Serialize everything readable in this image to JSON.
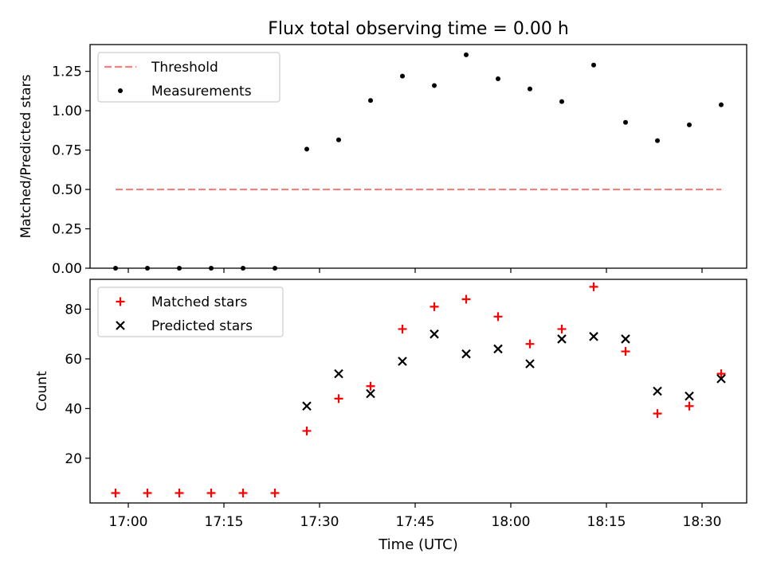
{
  "title": "Flux total observing time = 0.00 h",
  "xlabel": "Time (UTC)",
  "x_tick_labels": [
    "17:00",
    "17:15",
    "17:30",
    "17:45",
    "18:00",
    "18:15",
    "18:30"
  ],
  "x_tick_times": [
    "17:00",
    "17:15",
    "17:30",
    "17:45",
    "18:00",
    "18:15",
    "18:30"
  ],
  "x_range": [
    "16:54",
    "18:37"
  ],
  "chart_data": [
    {
      "type": "scatter",
      "ylabel": "Matched/Predicted stars",
      "ylim": [
        0,
        1.42
      ],
      "y_ticks": [
        0.0,
        0.25,
        0.5,
        0.75,
        1.0,
        1.25
      ],
      "y_tick_labels": [
        "0.00",
        "0.25",
        "0.50",
        "0.75",
        "1.00",
        "1.25"
      ],
      "legend_position": "top-left",
      "x": [
        "16:58",
        "17:03",
        "17:08",
        "17:13",
        "17:18",
        "17:23",
        "17:28",
        "17:33",
        "17:38",
        "17:43",
        "17:48",
        "17:53",
        "17:58",
        "18:03",
        "18:08",
        "18:13",
        "18:18",
        "18:23",
        "18:28",
        "18:33"
      ],
      "series": [
        {
          "name": "Threshold",
          "kind": "line",
          "color": "#ff7f7f",
          "style": "dashed",
          "x": [
            "16:58",
            "18:33"
          ],
          "values": [
            0.5,
            0.5
          ]
        },
        {
          "name": "Measurements",
          "kind": "scatter",
          "color": "#000000",
          "marker": "dot",
          "values": [
            0.0,
            0.0,
            0.0,
            0.0,
            0.0,
            0.0,
            0.756,
            0.815,
            1.065,
            1.22,
            1.16,
            1.355,
            1.203,
            1.138,
            1.058,
            1.29,
            0.926,
            0.81,
            0.91,
            1.038
          ]
        }
      ]
    },
    {
      "type": "scatter",
      "ylabel": "Count",
      "ylim": [
        2,
        92
      ],
      "y_ticks": [
        20,
        40,
        60,
        80
      ],
      "y_tick_labels": [
        "20",
        "40",
        "60",
        "80"
      ],
      "legend_position": "top-left",
      "x": [
        "16:58",
        "17:03",
        "17:08",
        "17:13",
        "17:18",
        "17:23",
        "17:28",
        "17:33",
        "17:38",
        "17:43",
        "17:48",
        "17:53",
        "17:58",
        "18:03",
        "18:08",
        "18:13",
        "18:18",
        "18:23",
        "18:28",
        "18:33"
      ],
      "series": [
        {
          "name": "Matched stars",
          "kind": "scatter",
          "color": "#ff0000",
          "marker": "plus",
          "values": [
            6,
            6,
            6,
            6,
            6,
            6,
            31,
            44,
            49,
            72,
            81,
            84,
            77,
            66,
            72,
            89,
            63,
            38,
            41,
            54
          ]
        },
        {
          "name": "Predicted stars",
          "kind": "scatter",
          "color": "#000000",
          "marker": "x",
          "values": [
            null,
            null,
            null,
            null,
            null,
            null,
            41,
            54,
            46,
            59,
            70,
            62,
            64,
            58,
            68,
            69,
            68,
            47,
            45,
            52
          ]
        }
      ]
    }
  ]
}
